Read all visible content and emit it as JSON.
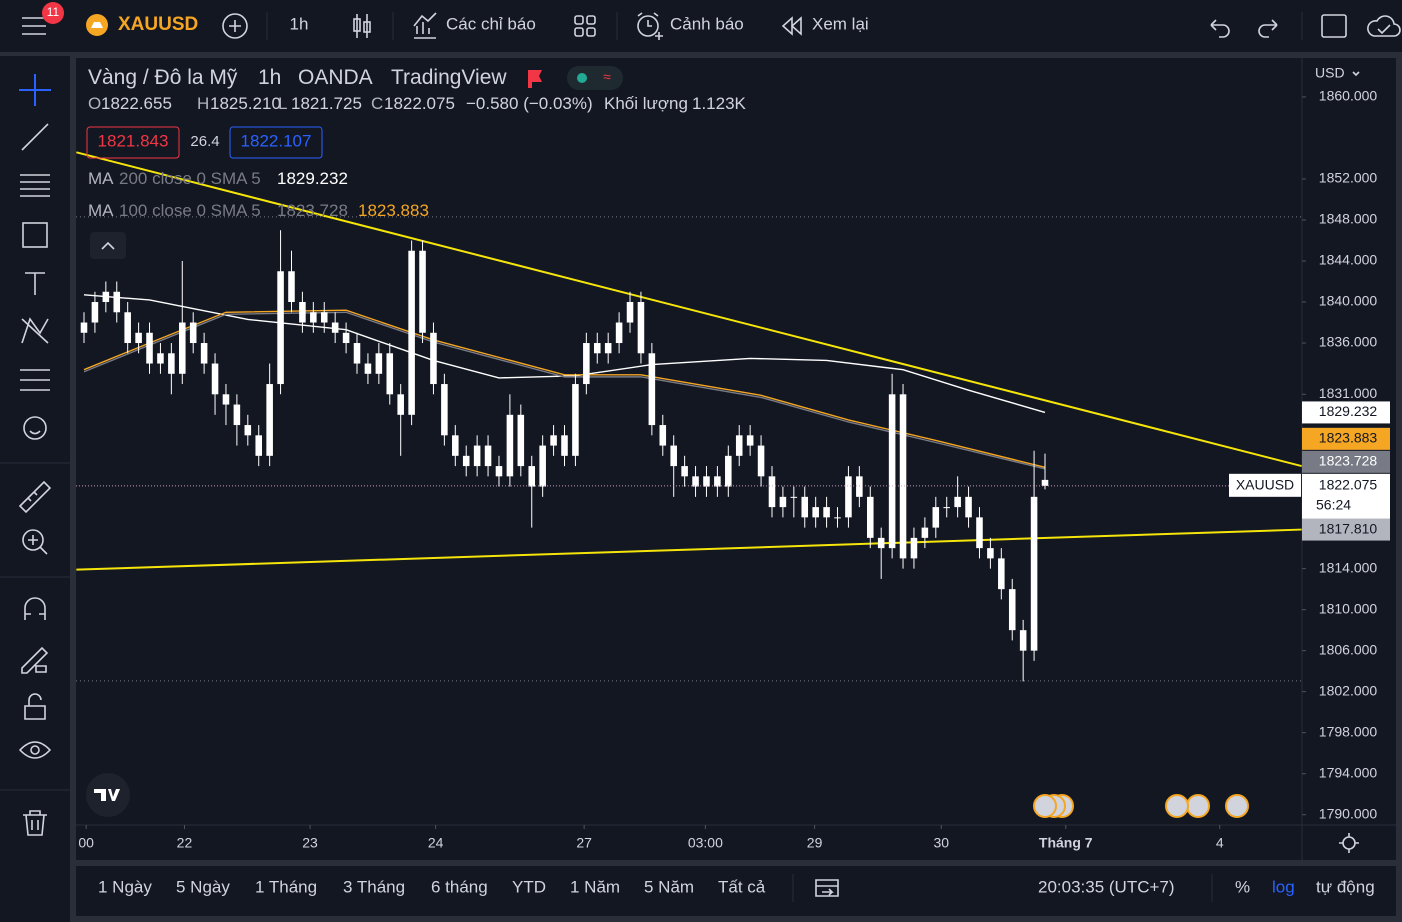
{
  "toolbar": {
    "badge": "11",
    "symbol": "XAUUSD",
    "interval": "1h",
    "indicators": "Các chỉ báo",
    "alert": "Cảnh báo",
    "replay": "Xem lại"
  },
  "legend": {
    "title": "Vàng / Đô la Mỹ",
    "interval": "1h",
    "exchange": "OANDA",
    "source": "TradingView",
    "ohlc": [
      {
        "label": "O",
        "value": "1822.655"
      },
      {
        "label": "H",
        "value": "1825.210"
      },
      {
        "label": "L",
        "value": "1821.725"
      },
      {
        "label": "C",
        "value": "1822.075"
      }
    ],
    "change": "−0.580 (−0.03%)",
    "volume_label": "Khối lượng",
    "volume": "1.123K",
    "bid": "1821.843",
    "spread": "26.4",
    "ask": "1822.107",
    "ma": [
      {
        "label": "MA",
        "params": "200 close 0 SMA 5",
        "values": [
          "1829.232"
        ]
      },
      {
        "label": "MA",
        "params": "100 close 0 SMA 5",
        "values": [
          "1823.728",
          "1823.883"
        ]
      }
    ]
  },
  "currency": "USD",
  "chart_data": {
    "type": "candlestick",
    "color": "#ffffff",
    "ohlc": [
      [
        1837,
        1839,
        1836,
        1838
      ],
      [
        1838,
        1841,
        1837,
        1840
      ],
      [
        1840,
        1842,
        1839,
        1841
      ],
      [
        1841,
        1842,
        1838,
        1839
      ],
      [
        1839,
        1840,
        1835,
        1836
      ],
      [
        1836,
        1838,
        1835,
        1837
      ],
      [
        1837,
        1838,
        1833,
        1834
      ],
      [
        1834,
        1836,
        1833,
        1835
      ],
      [
        1835,
        1836,
        1831,
        1833
      ],
      [
        1833,
        1844,
        1832,
        1838
      ],
      [
        1838,
        1839,
        1835,
        1836
      ],
      [
        1836,
        1837,
        1833,
        1834
      ],
      [
        1834,
        1835,
        1829,
        1831
      ],
      [
        1831,
        1832,
        1828,
        1830
      ],
      [
        1830,
        1831,
        1826,
        1828
      ],
      [
        1828,
        1829,
        1826,
        1827
      ],
      [
        1827,
        1828,
        1824,
        1825
      ],
      [
        1825,
        1834,
        1824,
        1832
      ],
      [
        1832,
        1847,
        1831,
        1843
      ],
      [
        1843,
        1845,
        1839,
        1840
      ],
      [
        1840,
        1841,
        1837,
        1838
      ],
      [
        1838,
        1840,
        1837,
        1839
      ],
      [
        1839,
        1840,
        1837,
        1838
      ],
      [
        1838,
        1839,
        1836,
        1837
      ],
      [
        1837,
        1838,
        1835,
        1836
      ],
      [
        1836,
        1837,
        1833,
        1834
      ],
      [
        1834,
        1835,
        1832,
        1833
      ],
      [
        1833,
        1836,
        1832,
        1835
      ],
      [
        1835,
        1836,
        1830,
        1831
      ],
      [
        1831,
        1832,
        1825,
        1829
      ],
      [
        1829,
        1846,
        1828,
        1845
      ],
      [
        1845,
        1846,
        1836,
        1837
      ],
      [
        1837,
        1838,
        1831,
        1832
      ],
      [
        1832,
        1833,
        1826,
        1827
      ],
      [
        1827,
        1828,
        1824,
        1825
      ],
      [
        1825,
        1826,
        1823,
        1824
      ],
      [
        1824,
        1827,
        1823,
        1826
      ],
      [
        1826,
        1827,
        1823,
        1824
      ],
      [
        1824,
        1825,
        1822,
        1823
      ],
      [
        1823,
        1831,
        1822,
        1829
      ],
      [
        1829,
        1830,
        1823,
        1824
      ],
      [
        1824,
        1825,
        1818,
        1822
      ],
      [
        1822,
        1827,
        1821,
        1826
      ],
      [
        1826,
        1828,
        1825,
        1827
      ],
      [
        1827,
        1828,
        1824,
        1825
      ],
      [
        1825,
        1833,
        1824,
        1832
      ],
      [
        1832,
        1837,
        1831,
        1836
      ],
      [
        1836,
        1837,
        1834,
        1835
      ],
      [
        1835,
        1837,
        1834,
        1836
      ],
      [
        1836,
        1839,
        1835,
        1838
      ],
      [
        1838,
        1841,
        1837,
        1840
      ],
      [
        1840,
        1841,
        1834,
        1835
      ],
      [
        1835,
        1836,
        1827,
        1828
      ],
      [
        1828,
        1829,
        1825,
        1826
      ],
      [
        1826,
        1827,
        1821,
        1824
      ],
      [
        1824,
        1825,
        1822,
        1823
      ],
      [
        1823,
        1824,
        1821,
        1822
      ],
      [
        1822,
        1824,
        1821,
        1823
      ],
      [
        1823,
        1824,
        1821,
        1822
      ],
      [
        1822,
        1826,
        1821,
        1825
      ],
      [
        1825,
        1828,
        1824,
        1827
      ],
      [
        1827,
        1828,
        1825,
        1826
      ],
      [
        1826,
        1827,
        1822,
        1823
      ],
      [
        1823,
        1824,
        1819,
        1820
      ],
      [
        1820,
        1822,
        1819,
        1821
      ],
      [
        1821,
        1822,
        1819,
        1821
      ],
      [
        1821,
        1822,
        1818,
        1819
      ],
      [
        1819,
        1821,
        1818,
        1820
      ],
      [
        1820,
        1821,
        1818,
        1819
      ],
      [
        1819,
        1820,
        1818,
        1819
      ],
      [
        1819,
        1824,
        1818,
        1823
      ],
      [
        1823,
        1824,
        1820,
        1821
      ],
      [
        1821,
        1822,
        1816,
        1817
      ],
      [
        1817,
        1818,
        1813,
        1816
      ],
      [
        1816,
        1833,
        1815,
        1831
      ],
      [
        1831,
        1832,
        1814,
        1815
      ],
      [
        1815,
        1818,
        1814,
        1817
      ],
      [
        1817,
        1819,
        1816,
        1818
      ],
      [
        1818,
        1821,
        1817,
        1820
      ],
      [
        1820,
        1821,
        1819,
        1820
      ],
      [
        1820,
        1823,
        1819,
        1821
      ],
      [
        1821,
        1822,
        1818,
        1819
      ],
      [
        1819,
        1820,
        1815,
        1816
      ],
      [
        1816,
        1817,
        1814,
        1815
      ],
      [
        1815,
        1816,
        1811,
        1812
      ],
      [
        1812,
        1813,
        1807,
        1808
      ],
      [
        1808,
        1809,
        1803,
        1806
      ],
      [
        1806,
        1825.5,
        1805,
        1821
      ],
      [
        1822.655,
        1825.21,
        1821.725,
        1822.075
      ]
    ],
    "lines": [
      {
        "color": "#ffffff",
        "x": [
          0,
          6,
          15,
          24,
          32,
          38,
          45,
          52,
          61,
          68,
          75,
          81,
          88
        ],
        "values": [
          1840.7,
          1840.2,
          1838.3,
          1837.3,
          1834.3,
          1832.6,
          1832.8,
          1833.9,
          1834.5,
          1834.3,
          1833.4,
          1831.4,
          1829.232
        ]
      },
      {
        "color": "#787b86",
        "x": [
          0,
          6,
          13,
          24,
          32,
          44,
          51,
          62,
          70,
          78,
          88
        ],
        "values": [
          1833.2,
          1835.8,
          1838.8,
          1839.0,
          1836.1,
          1832.7,
          1832.7,
          1830.7,
          1828.3,
          1826.3,
          1823.728
        ]
      },
      {
        "color": "#f5a623",
        "x": [
          0,
          6,
          13,
          24,
          32,
          44,
          51,
          62,
          70,
          78,
          88
        ],
        "values": [
          1833.4,
          1836,
          1839,
          1839.2,
          1836.3,
          1832.9,
          1832.9,
          1830.9,
          1828.5,
          1826.5,
          1823.883
        ]
      }
    ],
    "trendlines": [
      {
        "color": "#f5e50a",
        "x": [
          -0.7,
          111.5
        ],
        "values": [
          1854.6,
          1824.0
        ]
      },
      {
        "color": "#f5e50a",
        "x": [
          -0.7,
          111.5
        ],
        "values": [
          1813.9,
          1817.81
        ]
      }
    ],
    "hlines": [
      1848.3,
      1803.06
    ],
    "ylim": [
      1789,
      1863.6
    ],
    "yticks": [
      {
        "value": 1790,
        "label": "1790.000"
      },
      {
        "value": 1794,
        "label": "1794.000"
      },
      {
        "value": 1798,
        "label": "1798.000"
      },
      {
        "value": 1802,
        "label": "1802.000"
      },
      {
        "value": 1806,
        "label": "1806.000"
      },
      {
        "value": 1810,
        "label": "1810.000"
      },
      {
        "value": 1814,
        "label": "1814.000"
      },
      {
        "value": 1831,
        "label": "1831.000"
      },
      {
        "value": 1836,
        "label": "1836.000"
      },
      {
        "value": 1840,
        "label": "1840.000"
      },
      {
        "value": 1844,
        "label": "1844.000"
      },
      {
        "value": 1848,
        "label": "1848.000"
      },
      {
        "value": 1852,
        "label": "1852.000"
      },
      {
        "value": 1860,
        "label": "1860.000"
      }
    ],
    "xticks": [
      {
        "value": 0.2,
        "label": "00"
      },
      {
        "value": 9.2,
        "label": "22"
      },
      {
        "value": 20.7,
        "label": "23"
      },
      {
        "value": 32.2,
        "label": "24"
      },
      {
        "value": 45.8,
        "label": "27"
      },
      {
        "value": 56.9,
        "label": "03:00"
      },
      {
        "value": 66.9,
        "label": "29"
      },
      {
        "value": 78.5,
        "label": "30"
      },
      {
        "value": 89.9,
        "label": "Tháng 7"
      },
      {
        "value": 104,
        "label": "4"
      }
    ],
    "price_labels": [
      {
        "value": 1829.232,
        "label": "1829.232",
        "bg": "#ffffff",
        "fg": "#131722"
      },
      {
        "value": 1823.883,
        "label": "1823.883",
        "bg": "#f5a623",
        "fg": "#131722"
      },
      {
        "value": 1823.728,
        "label": "1823.728",
        "bg": "#787b86",
        "fg": "#ffffff"
      }
    ],
    "trend_label": {
      "value": 1817.81,
      "label": "1817.810",
      "bg": "#b2b5be",
      "fg": "#131722"
    },
    "last_price": {
      "value": 1822.075,
      "label": "1822.075",
      "countdown": "56:24",
      "symbol": "XAUUSD"
    }
  },
  "bottom": {
    "ranges": [
      "1 Ngày",
      "5 Ngày",
      "1 Tháng",
      "3 Tháng",
      "6 tháng",
      "YTD",
      "1 Năm",
      "5 Năm",
      "Tất cả"
    ],
    "clock": "20:03:35 (UTC+7)",
    "percent": "%",
    "log": "log",
    "auto": "tự động"
  }
}
